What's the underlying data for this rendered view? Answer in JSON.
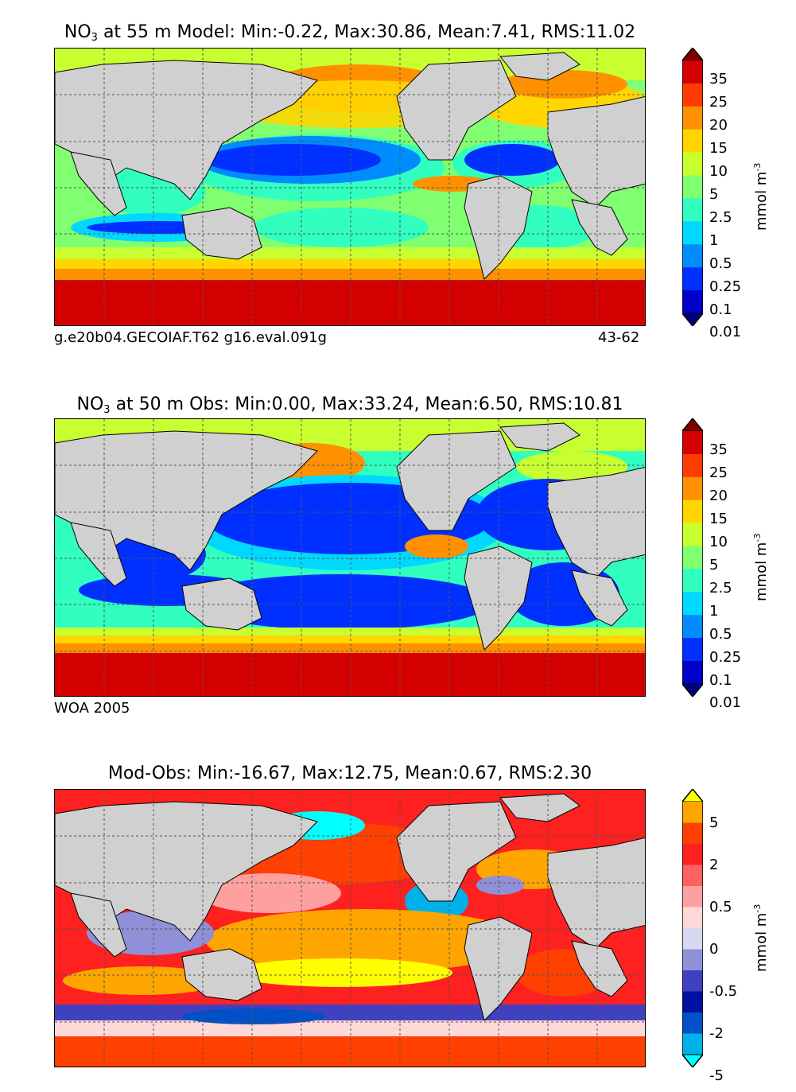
{
  "panels": [
    {
      "id": "model",
      "title_prefix": "NO",
      "title_sub": "3",
      "title_rest": " at 55 m Model: Min:-0.22, Max:30.86, Mean:7.41, RMS:11.02",
      "footer_left": "g.e20b04.GECOIAF.T62 g16.eval.091g",
      "footer_right": "43-62",
      "colorbar_labels": [
        "35",
        "25",
        "20",
        "15",
        "10",
        "5",
        "2.5",
        "1",
        "0.5",
        "0.25",
        "0.1",
        "0.01"
      ],
      "colorbar_colors": [
        "#7f0000",
        "#d40000",
        "#ff3c00",
        "#ff9000",
        "#ffd600",
        "#c8ff30",
        "#80ff70",
        "#30ffc0",
        "#00d8ff",
        "#008cff",
        "#0030ff",
        "#0000c8",
        "#00007f"
      ],
      "unit": "mmol m",
      "unit_sup": "-3"
    },
    {
      "id": "obs",
      "title_prefix": "NO",
      "title_sub": "3",
      "title_rest": " at 50 m Obs: Min:0.00, Max:33.24, Mean:6.50, RMS:10.81",
      "footer_left": "WOA 2005",
      "footer_right": "",
      "colorbar_labels": [
        "35",
        "25",
        "20",
        "15",
        "10",
        "5",
        "2.5",
        "1",
        "0.5",
        "0.25",
        "0.1",
        "0.01"
      ],
      "colorbar_colors": [
        "#7f0000",
        "#d40000",
        "#ff3c00",
        "#ff9000",
        "#ffd600",
        "#c8ff30",
        "#80ff70",
        "#30ffc0",
        "#00d8ff",
        "#008cff",
        "#0030ff",
        "#0000c8",
        "#00007f"
      ],
      "unit": "mmol m",
      "unit_sup": "-3"
    },
    {
      "id": "diff",
      "title_prefix": "",
      "title_sub": "",
      "title_rest": "Mod-Obs: Min:-16.67, Max:12.75, Mean:0.67, RMS:2.30",
      "footer_left": "",
      "footer_right": "",
      "colorbar_labels": [
        "5",
        "2",
        "0.5",
        "0",
        "-0.5",
        "-2",
        "-5"
      ],
      "colorbar_colors": [
        "#ffff00",
        "#ffa500",
        "#ff4000",
        "#ff2020",
        "#ff6060",
        "#ffa0a0",
        "#ffd8d8",
        "#d8d8f0",
        "#9090d8",
        "#4040c0",
        "#0010a0",
        "#0050c8",
        "#00b0e8",
        "#00ffff"
      ],
      "unit": "mmol m",
      "unit_sup": "-3"
    }
  ],
  "chart_data": [
    {
      "type": "heatmap",
      "title": "NO3 at 55 m Model: Min:-0.22, Max:30.86, Mean:7.41, RMS:11.02",
      "variable": "NO3",
      "depth_m": 55,
      "stats": {
        "min": -0.22,
        "max": 30.86,
        "mean": 7.41,
        "rms": 11.02
      },
      "levels": [
        0.01,
        0.1,
        0.25,
        0.5,
        1,
        2.5,
        5,
        10,
        15,
        20,
        25,
        35
      ],
      "units": "mmol m-3",
      "annotation_left": "g.e20b04.GECOIAF.T62 g16.eval.091g",
      "annotation_right": "43-62"
    },
    {
      "type": "heatmap",
      "title": "NO3 at 50 m Obs: Min:0.00, Max:33.24, Mean:6.50, RMS:10.81",
      "variable": "NO3",
      "depth_m": 50,
      "stats": {
        "min": 0.0,
        "max": 33.24,
        "mean": 6.5,
        "rms": 10.81
      },
      "levels": [
        0.01,
        0.1,
        0.25,
        0.5,
        1,
        2.5,
        5,
        10,
        15,
        20,
        25,
        35
      ],
      "units": "mmol m-3",
      "annotation_left": "WOA 2005"
    },
    {
      "type": "heatmap",
      "title": "Mod-Obs: Min:-16.67, Max:12.75, Mean:0.67, RMS:2.30",
      "stats": {
        "min": -16.67,
        "max": 12.75,
        "mean": 0.67,
        "rms": 2.3
      },
      "levels": [
        -5,
        -2,
        -0.5,
        0,
        0.5,
        2,
        5
      ],
      "units": "mmol m-3"
    }
  ]
}
